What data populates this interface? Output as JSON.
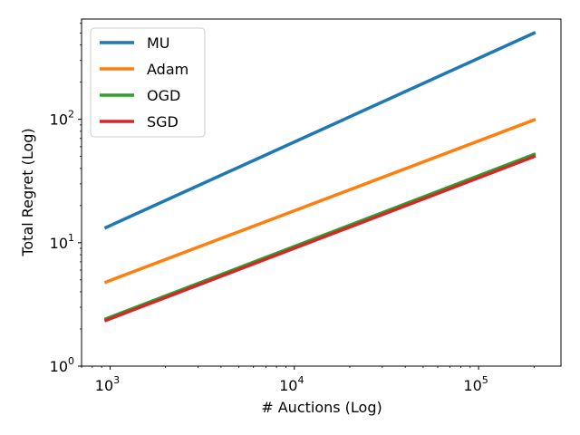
{
  "chart_data": {
    "type": "line",
    "title": "",
    "xlabel": "# Auctions (Log)",
    "ylabel": "Total Regret (Log)",
    "xscale": "log",
    "yscale": "log",
    "xlim": [
      700,
      280000
    ],
    "ylim": [
      1,
      650
    ],
    "x_ticks": [
      {
        "value": 1000,
        "base": "10",
        "exp": "3"
      },
      {
        "value": 10000,
        "base": "10",
        "exp": "4"
      },
      {
        "value": 100000,
        "base": "10",
        "exp": "5"
      }
    ],
    "y_ticks": [
      {
        "value": 1,
        "base": "10",
        "exp": "0"
      },
      {
        "value": 10,
        "base": "10",
        "exp": "1"
      },
      {
        "value": 100,
        "base": "10",
        "exp": "2"
      }
    ],
    "x": [
      950,
      200000
    ],
    "series": [
      {
        "name": "MU",
        "color": "#1f77b4",
        "values": [
          13.3,
          500
        ]
      },
      {
        "name": "Adam",
        "color": "#ff7f0e",
        "values": [
          4.8,
          99
        ]
      },
      {
        "name": "OGD",
        "color": "#2ca02c",
        "values": [
          2.42,
          52
        ]
      },
      {
        "name": "SGD",
        "color": "#d62728",
        "values": [
          2.35,
          50
        ]
      }
    ],
    "legend": {
      "position": "top-left"
    },
    "grid": false
  }
}
